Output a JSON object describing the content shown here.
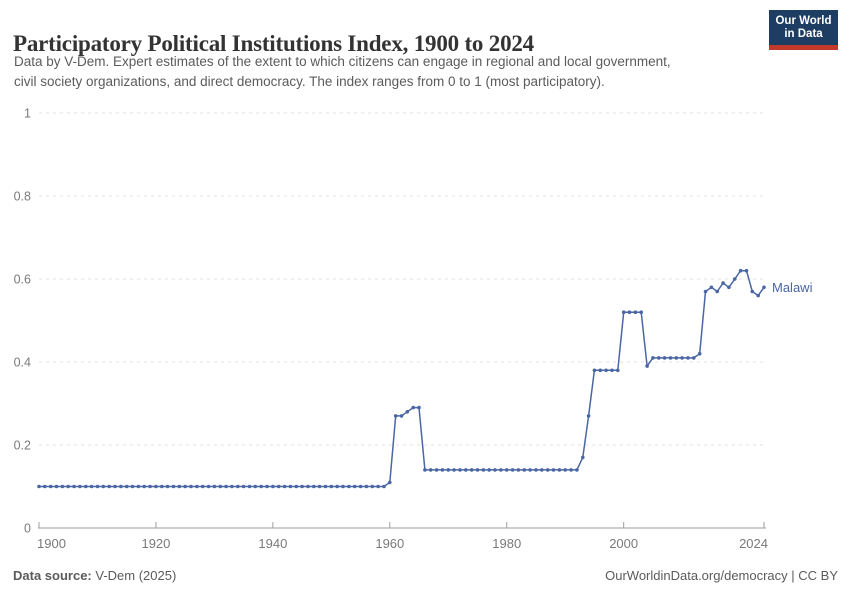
{
  "header": {
    "title": "Participatory Political Institutions Index, 1900 to 2024",
    "subtitle_lines": [
      "Data by V-Dem. Expert estimates of the extent to which citizens can engage in regional and local government,",
      "civil society organizations, and direct democracy. The index ranges from 0 to 1 (most participatory)."
    ],
    "logo": {
      "line1": "Our World",
      "line2": "in Data",
      "bg_color": "#1d3d63",
      "accent_color": "#c0392b"
    }
  },
  "chart_data": {
    "type": "line",
    "title": "Participatory Political Institutions Index, 1900 to 2024",
    "xlabel": "",
    "ylabel": "",
    "xlim": [
      1900,
      2024
    ],
    "ylim": [
      0,
      1
    ],
    "xticks": [
      1900,
      1920,
      1940,
      1960,
      1980,
      2000,
      2024
    ],
    "yticks": [
      0,
      0.2,
      0.4,
      0.6,
      0.8,
      1
    ],
    "ytick_labels": [
      "0",
      "0.2",
      "0.4",
      "0.6",
      "0.8",
      "1"
    ],
    "grid": "horizontal-dashed",
    "legend_position": "end-of-line-label",
    "line_color": "#4a66a3",
    "grid_color": "#e0e0e0",
    "axis_color": "#9e9e9e",
    "tick_label_color": "#7a7a7a",
    "x": [
      1900,
      1901,
      1902,
      1903,
      1904,
      1905,
      1906,
      1907,
      1908,
      1909,
      1910,
      1911,
      1912,
      1913,
      1914,
      1915,
      1916,
      1917,
      1918,
      1919,
      1920,
      1921,
      1922,
      1923,
      1924,
      1925,
      1926,
      1927,
      1928,
      1929,
      1930,
      1931,
      1932,
      1933,
      1934,
      1935,
      1936,
      1937,
      1938,
      1939,
      1940,
      1941,
      1942,
      1943,
      1944,
      1945,
      1946,
      1947,
      1948,
      1949,
      1950,
      1951,
      1952,
      1953,
      1954,
      1955,
      1956,
      1957,
      1958,
      1959,
      1960,
      1961,
      1962,
      1963,
      1964,
      1965,
      1966,
      1967,
      1968,
      1969,
      1970,
      1971,
      1972,
      1973,
      1974,
      1975,
      1976,
      1977,
      1978,
      1979,
      1980,
      1981,
      1982,
      1983,
      1984,
      1985,
      1986,
      1987,
      1988,
      1989,
      1990,
      1991,
      1992,
      1993,
      1994,
      1995,
      1996,
      1997,
      1998,
      1999,
      2000,
      2001,
      2002,
      2003,
      2004,
      2005,
      2006,
      2007,
      2008,
      2009,
      2010,
      2011,
      2012,
      2013,
      2014,
      2015,
      2016,
      2017,
      2018,
      2019,
      2020,
      2021,
      2022,
      2023,
      2024
    ],
    "series": [
      {
        "name": "Malawi",
        "values": [
          0.1,
          0.1,
          0.1,
          0.1,
          0.1,
          0.1,
          0.1,
          0.1,
          0.1,
          0.1,
          0.1,
          0.1,
          0.1,
          0.1,
          0.1,
          0.1,
          0.1,
          0.1,
          0.1,
          0.1,
          0.1,
          0.1,
          0.1,
          0.1,
          0.1,
          0.1,
          0.1,
          0.1,
          0.1,
          0.1,
          0.1,
          0.1,
          0.1,
          0.1,
          0.1,
          0.1,
          0.1,
          0.1,
          0.1,
          0.1,
          0.1,
          0.1,
          0.1,
          0.1,
          0.1,
          0.1,
          0.1,
          0.1,
          0.1,
          0.1,
          0.1,
          0.1,
          0.1,
          0.1,
          0.1,
          0.1,
          0.1,
          0.1,
          0.1,
          0.1,
          0.11,
          0.27,
          0.27,
          0.28,
          0.29,
          0.29,
          0.14,
          0.14,
          0.14,
          0.14,
          0.14,
          0.14,
          0.14,
          0.14,
          0.14,
          0.14,
          0.14,
          0.14,
          0.14,
          0.14,
          0.14,
          0.14,
          0.14,
          0.14,
          0.14,
          0.14,
          0.14,
          0.14,
          0.14,
          0.14,
          0.14,
          0.14,
          0.14,
          0.17,
          0.27,
          0.38,
          0.38,
          0.38,
          0.38,
          0.38,
          0.52,
          0.52,
          0.52,
          0.52,
          0.39,
          0.41,
          0.41,
          0.41,
          0.41,
          0.41,
          0.41,
          0.41,
          0.41,
          0.42,
          0.57,
          0.58,
          0.57,
          0.59,
          0.58,
          0.6,
          0.62,
          0.62,
          0.57,
          0.56,
          0.58
        ]
      }
    ]
  },
  "footer": {
    "source_label": "Data source:",
    "source_value": "V-Dem (2025)",
    "attribution": "OurWorldinData.org/democracy | CC BY"
  }
}
